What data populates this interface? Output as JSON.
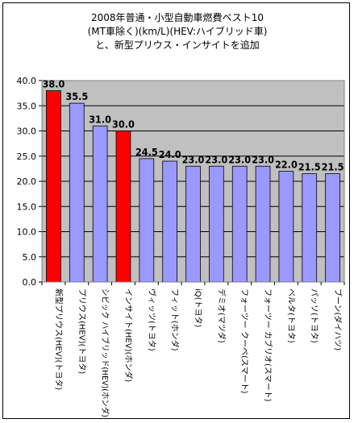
{
  "chart_data": {
    "type": "bar",
    "title_lines": [
      "2008年普通・小型自動車燃費ベスト10",
      "(MT車除く)(km/L)(HEV:ハイブリッド車)",
      "と、新型プリウス・インサイトを追加"
    ],
    "categories": [
      "新型プリウス(HEV)(トヨタ)",
      "プリウス(HEV)(トヨタ)",
      "シビック ハイブリッド(HEV)(ホンダ)",
      "インサイト(HEV)(ホンダ)",
      "ヴィッツ(トヨタ)",
      "フィット(ホンダ)",
      "iQ(トヨタ)",
      "デミオ(マツダ)",
      "フォーツー クーペ(スマート)",
      "フォーツー カブリオ(スマート)",
      "ベルタ(トヨタ)",
      "パッソ(トヨタ)",
      "ブーン(ダイハツ)"
    ],
    "values": [
      38.0,
      35.5,
      31.0,
      30.0,
      24.5,
      24.0,
      23.0,
      23.0,
      23.0,
      23.0,
      22.0,
      21.5,
      21.5
    ],
    "data_labels": [
      "38.0",
      "35.5",
      "31.0",
      "30.0",
      "24.5",
      "24.0",
      "23.0",
      "23.0",
      "23.0",
      "23.0",
      "22.0",
      "21.5",
      "21.5"
    ],
    "highlight_indices": [
      0,
      3
    ],
    "ylim": [
      0,
      40
    ],
    "yticks": [
      "0.0",
      "5.0",
      "10.0",
      "15.0",
      "20.0",
      "25.0",
      "30.0",
      "35.0",
      "40.0"
    ],
    "grid": true,
    "colors": {
      "bar": "#9999ff",
      "highlight": "#ff0000",
      "plot_bg": "#c0c0c0",
      "grid": "#000000"
    }
  }
}
